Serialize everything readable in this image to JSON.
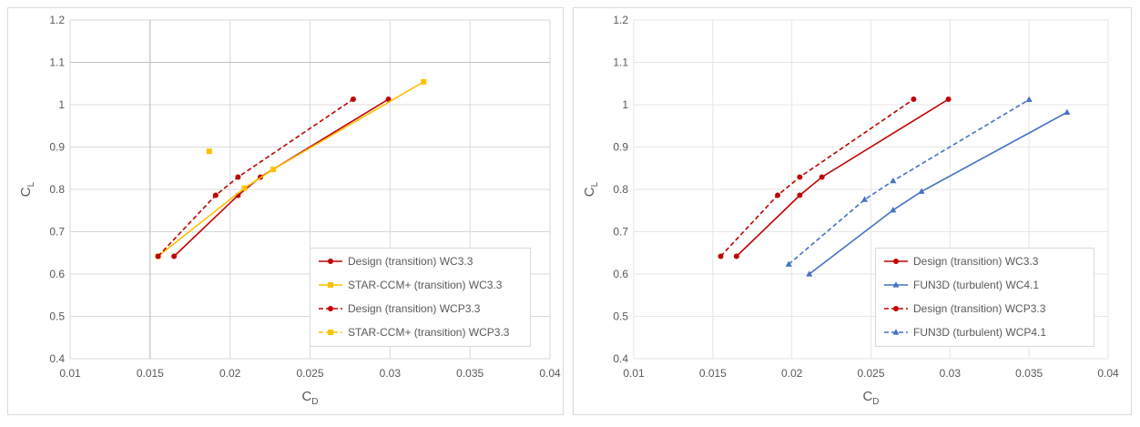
{
  "chart_data": [
    {
      "type": "line",
      "xlabel": "C",
      "xlabel_sub": "D",
      "ylabel": "C",
      "ylabel_sub": "L",
      "xlim": [
        0.01,
        0.04
      ],
      "ylim": [
        0.4,
        1.2
      ],
      "xticks": [
        "0.01",
        "0.015",
        "0.02",
        "0.025",
        "0.03",
        "0.035",
        "0.04"
      ],
      "yticks": [
        "0.4",
        "0.5",
        "0.6",
        "0.7",
        "0.8",
        "0.9",
        "1",
        "1.1",
        "1.2"
      ],
      "grid": true,
      "legend_position": "bottom-right",
      "series": [
        {
          "name": "Design (transition) WC3.3",
          "color": "#C00000",
          "dash": "solid",
          "marker": "circle",
          "points": [
            [
              0.0165,
              0.642
            ],
            [
              0.0205,
              0.786
            ],
            [
              0.0219,
              0.829
            ],
            [
              0.0299,
              1.013
            ]
          ]
        },
        {
          "name": "STAR-CCM+ (transition) WC3.3",
          "color": "#FFC000",
          "dash": "solid",
          "marker": "square",
          "points": [
            [
              0.0155,
              0.642
            ],
            [
              0.0209,
              0.803
            ],
            [
              0.0227,
              0.847
            ],
            [
              0.0321,
              1.054
            ]
          ]
        },
        {
          "name": "Design (transition) WCP3.3",
          "color": "#C00000",
          "dash": "dashed",
          "marker": "circle",
          "points": [
            [
              0.0155,
              0.642
            ],
            [
              0.0191,
              0.786
            ],
            [
              0.0205,
              0.829
            ],
            [
              0.0277,
              1.013
            ]
          ]
        },
        {
          "name": "STAR-CCM+ (transition) WCP3.3",
          "color": "#FFC000",
          "dash": "dashed",
          "marker": "square",
          "points": [
            [
              0.0187,
              0.89
            ]
          ]
        }
      ]
    },
    {
      "type": "line",
      "xlabel": "C",
      "xlabel_sub": "D",
      "ylabel": "C",
      "ylabel_sub": "L",
      "xlim": [
        0.01,
        0.04
      ],
      "ylim": [
        0.4,
        1.2
      ],
      "xticks": [
        "0.01",
        "0.015",
        "0.02",
        "0.025",
        "0.03",
        "0.035",
        "0.04"
      ],
      "yticks": [
        "0.4",
        "0.5",
        "0.6",
        "0.7",
        "0.8",
        "0.9",
        "1",
        "1.1",
        "1.2"
      ],
      "grid": false,
      "legend_position": "bottom-right",
      "series": [
        {
          "name": "Design (transition) WC3.3",
          "color": "#C00000",
          "dash": "solid",
          "marker": "circle",
          "points": [
            [
              0.0165,
              0.642
            ],
            [
              0.0205,
              0.786
            ],
            [
              0.0219,
              0.829
            ],
            [
              0.0299,
              1.013
            ]
          ]
        },
        {
          "name": "FUN3D (turbulent) WC4.1",
          "color": "#4472C4",
          "dash": "solid",
          "marker": "triangle",
          "points": [
            [
              0.0211,
              0.6
            ],
            [
              0.0264,
              0.751
            ],
            [
              0.0282,
              0.795
            ],
            [
              0.0374,
              0.982
            ]
          ]
        },
        {
          "name": "Design (transition) WCP3.3",
          "color": "#C00000",
          "dash": "dashed",
          "marker": "circle",
          "points": [
            [
              0.0155,
              0.642
            ],
            [
              0.0191,
              0.786
            ],
            [
              0.0205,
              0.829
            ],
            [
              0.0277,
              1.013
            ]
          ]
        },
        {
          "name": "FUN3D (turbulent) WCP4.1",
          "color": "#4472C4",
          "dash": "dashed",
          "marker": "triangle",
          "points": [
            [
              0.0198,
              0.623
            ],
            [
              0.0246,
              0.776
            ],
            [
              0.0264,
              0.82
            ],
            [
              0.035,
              1.012
            ]
          ]
        }
      ]
    }
  ]
}
